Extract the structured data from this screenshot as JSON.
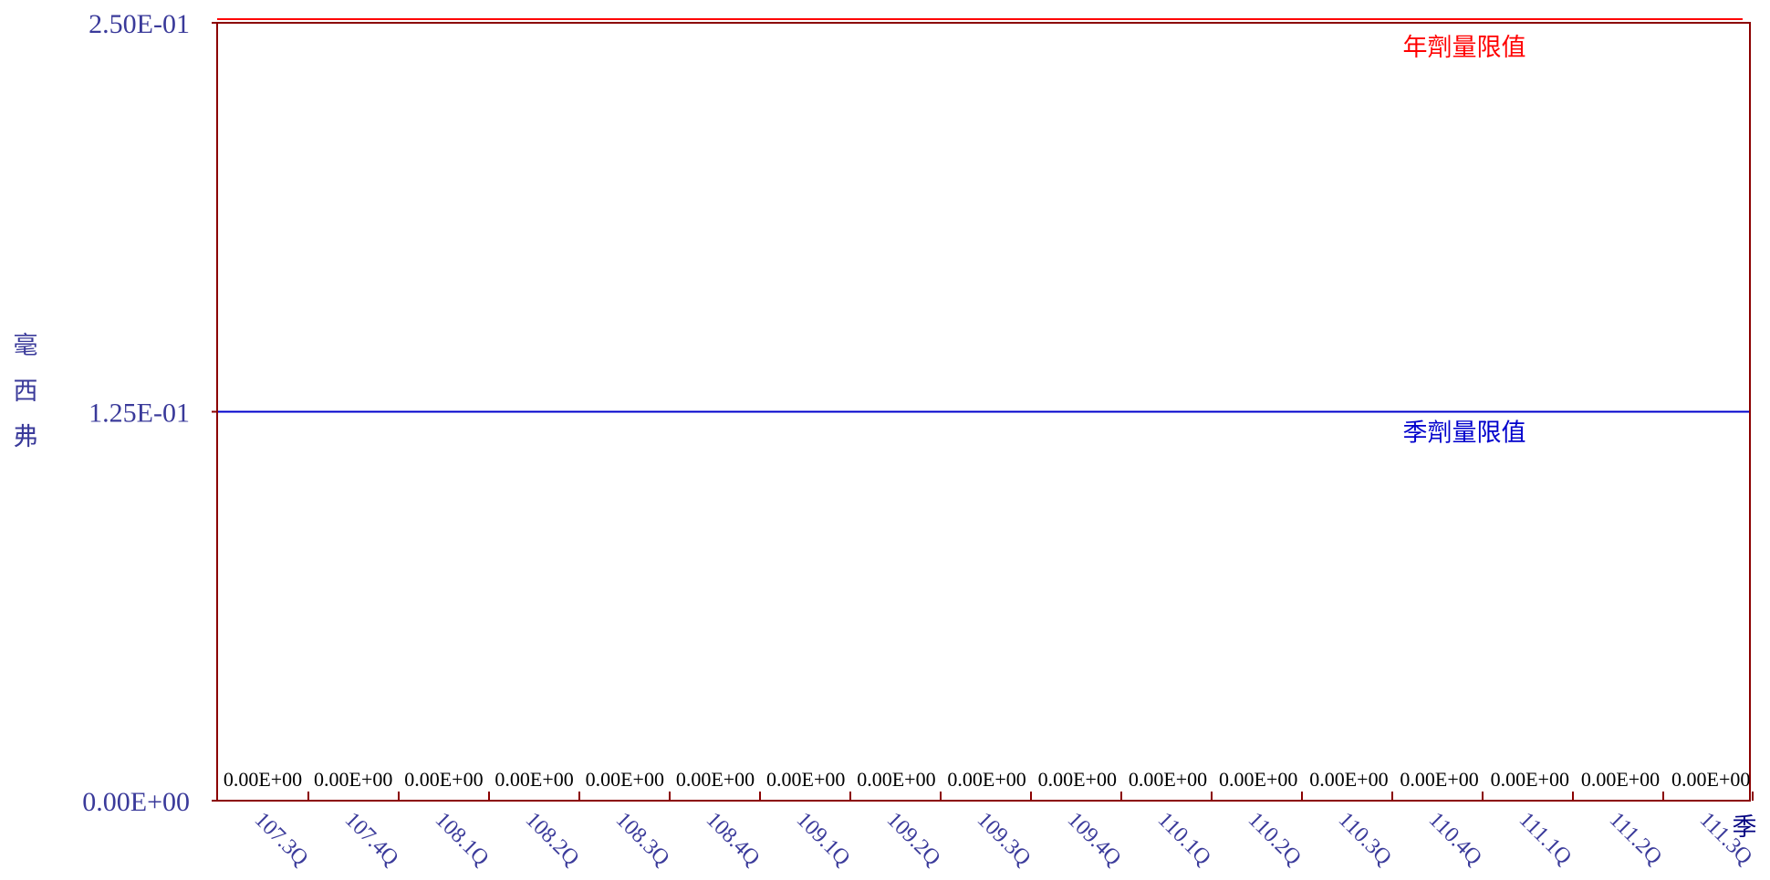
{
  "chart_data": {
    "type": "line",
    "title": "",
    "ylabel": "毫西弗",
    "xlabel": "季",
    "ylim": [
      0,
      0.25
    ],
    "y_ticks": [
      "0.00E+00",
      "1.25E-01",
      "2.50E-01"
    ],
    "y_tick_values": [
      0,
      0.125,
      0.25
    ],
    "categories": [
      "107.3Q",
      "107.4Q",
      "108.1Q",
      "108.2Q",
      "108.3Q",
      "108.4Q",
      "109.1Q",
      "109.2Q",
      "109.3Q",
      "109.4Q",
      "110.1Q",
      "110.2Q",
      "110.3Q",
      "110.4Q",
      "111.1Q",
      "111.2Q",
      "111.3Q"
    ],
    "series": [
      {
        "values": [
          0,
          0,
          0,
          0,
          0,
          0,
          0,
          0,
          0,
          0,
          0,
          0,
          0,
          0,
          0,
          0,
          0
        ],
        "data_labels": [
          "0.00E+00",
          "0.00E+00",
          "0.00E+00",
          "0.00E+00",
          "0.00E+00",
          "0.00E+00",
          "0.00E+00",
          "0.00E+00",
          "0.00E+00",
          "0.00E+00",
          "0.00E+00",
          "0.00E+00",
          "0.00E+00",
          "0.00E+00",
          "0.00E+00",
          "0.00E+00",
          "0.00E+00"
        ]
      }
    ],
    "reference_lines": [
      {
        "label": "年劑量限值",
        "value": 0.25,
        "color": "#ff0000"
      },
      {
        "label": "季劑量限值",
        "value": 0.125,
        "color": "#0000cc"
      }
    ],
    "colors": {
      "axis": "#8b0000",
      "tick_text": "#3a3a9a"
    },
    "grid": false,
    "legend": "none"
  }
}
